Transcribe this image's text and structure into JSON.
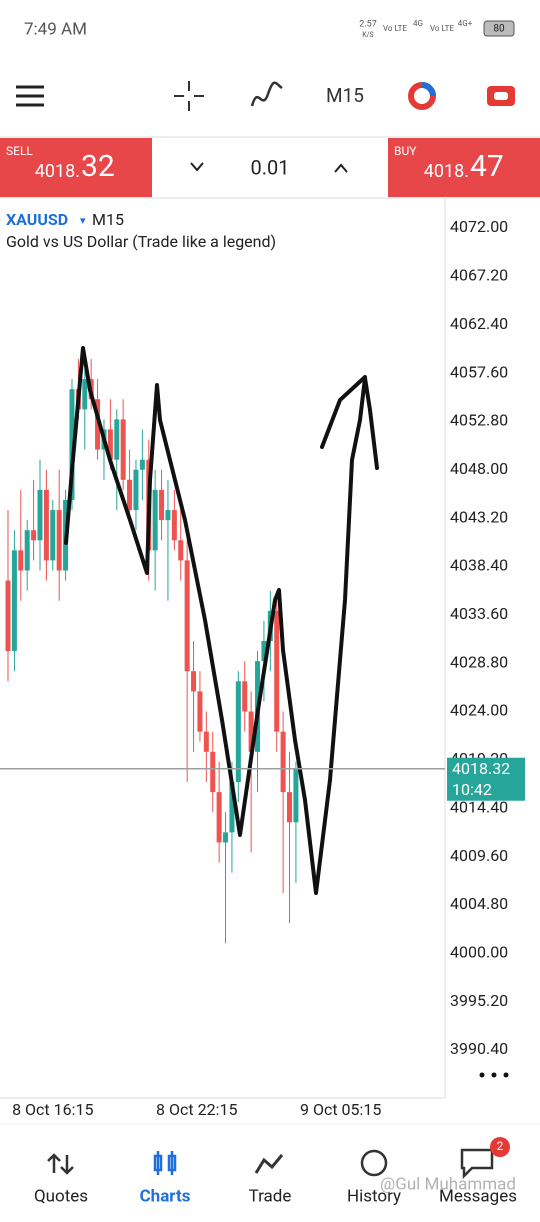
{
  "status_bar": {
    "time": "7:49 AM",
    "speed": "2.57",
    "speed_unit": "K/S",
    "net1": "Vo LTE",
    "net1_gen": "4G",
    "net2": "Vo LTE",
    "net2_gen": "4G+",
    "battery": "80"
  },
  "toolbar": {
    "timeframe": "M15"
  },
  "trade_panel": {
    "sell_label": "SELL",
    "sell_main": "4018.",
    "sell_big": "32",
    "lot": "0.01",
    "buy_label": "BUY",
    "buy_main": "4018.",
    "buy_big": "47"
  },
  "chart_data": {
    "type": "candlestick",
    "symbol": "XAUUSD",
    "timeframe": "M15",
    "description": "Gold vs US Dollar (Trade like a legend)",
    "open": [
      4037,
      4030,
      4040,
      4038,
      4042,
      4041,
      4046,
      4039,
      4044,
      4038,
      4045,
      4056,
      4054,
      4057,
      4055,
      4050,
      4052,
      4049,
      4053,
      4047,
      4044,
      4048,
      4049,
      4040,
      4046,
      4043,
      4044,
      4041,
      4039,
      4028,
      4026,
      4022,
      4020,
      4016,
      4011,
      4012,
      4017,
      4027,
      4024,
      4020,
      4029,
      4031,
      4034,
      4022,
      4016,
      4013
    ],
    "high": [
      4044,
      4042,
      4046,
      4043,
      4047,
      4049,
      4048,
      4045,
      4048,
      4046,
      4057,
      4059,
      4058,
      4059,
      4057,
      4053,
      4055,
      4054,
      4055,
      4050,
      4049,
      4052,
      4051,
      4048,
      4048,
      4047,
      4046,
      4044,
      4041,
      4031,
      4028,
      4024,
      4022,
      4019,
      4014,
      4019,
      4028,
      4029,
      4026,
      4030,
      4033,
      4036,
      4036,
      4024,
      4020,
      4019
    ],
    "low": [
      4027,
      4028,
      4035,
      4036,
      4039,
      4038,
      4037,
      4038,
      4035,
      4037,
      4044,
      4053,
      4050,
      4054,
      4049,
      4047,
      4048,
      4044,
      4046,
      4043,
      4042,
      4045,
      4037,
      4036,
      4041,
      4035,
      4040,
      4037,
      4017,
      4020,
      4021,
      4017,
      4014,
      4009,
      4001,
      4008,
      4015,
      4022,
      4010,
      4016,
      4025,
      4028,
      4020,
      4006,
      4003,
      4007
    ],
    "close": [
      4030,
      4040,
      4038,
      4042,
      4041,
      4046,
      4039,
      4044,
      4038,
      4045,
      4056,
      4054,
      4057,
      4055,
      4050,
      4052,
      4049,
      4053,
      4047,
      4044,
      4048,
      4049,
      4040,
      4046,
      4043,
      4044,
      4041,
      4039,
      4028,
      4026,
      4022,
      4020,
      4016,
      4011,
      4012,
      4017,
      4027,
      4024,
      4020,
      4029,
      4031,
      4034,
      4022,
      4016,
      4013,
      4018.32
    ],
    "up_color": "#26a69a",
    "down_color": "#ef5350",
    "ylim": [
      3985.93,
      4074.78
    ],
    "yticks": [
      {
        "value": 4072,
        "label": "4072.00"
      },
      {
        "value": 4067.2,
        "label": "4067.20"
      },
      {
        "value": 4062.4,
        "label": "4062.40"
      },
      {
        "value": 4057.6,
        "label": "4057.60"
      },
      {
        "value": 4052.8,
        "label": "4052.80"
      },
      {
        "value": 4048,
        "label": "4048.00"
      },
      {
        "value": 4043.2,
        "label": "4043.20"
      },
      {
        "value": 4038.4,
        "label": "4038.40"
      },
      {
        "value": 4033.6,
        "label": "4033.60"
      },
      {
        "value": 4028.8,
        "label": "4028.80"
      },
      {
        "value": 4024,
        "label": "4024.00"
      },
      {
        "value": 4019.2,
        "label": "4019.20"
      },
      {
        "value": 4014.4,
        "label": "4014.40"
      },
      {
        "value": 4009.6,
        "label": "4009.60"
      },
      {
        "value": 4004.8,
        "label": "4004.80"
      },
      {
        "value": 4000,
        "label": "4000.00"
      },
      {
        "value": 3995.2,
        "label": "3995.20"
      },
      {
        "value": 3990.4,
        "label": "3990.40"
      }
    ],
    "xlim": [
      -1.25,
      68.3
    ],
    "xticks": [
      {
        "value": 7,
        "label": "8 Oct 16:15"
      },
      {
        "value": 29.5,
        "label": "8 Oct 22:15"
      },
      {
        "value": 52,
        "label": "9 Oct 05:15"
      }
    ],
    "current_price": 4018.32,
    "countdown": "10:42",
    "price_line_color": "#9e9e9e",
    "price_tag_color": "#26a69a"
  },
  "nav": {
    "items": [
      "Quotes",
      "Charts",
      "Trade",
      "History",
      "Messages"
    ],
    "active": 1,
    "badge": "2",
    "watermark": "@Gul Muhammad"
  }
}
